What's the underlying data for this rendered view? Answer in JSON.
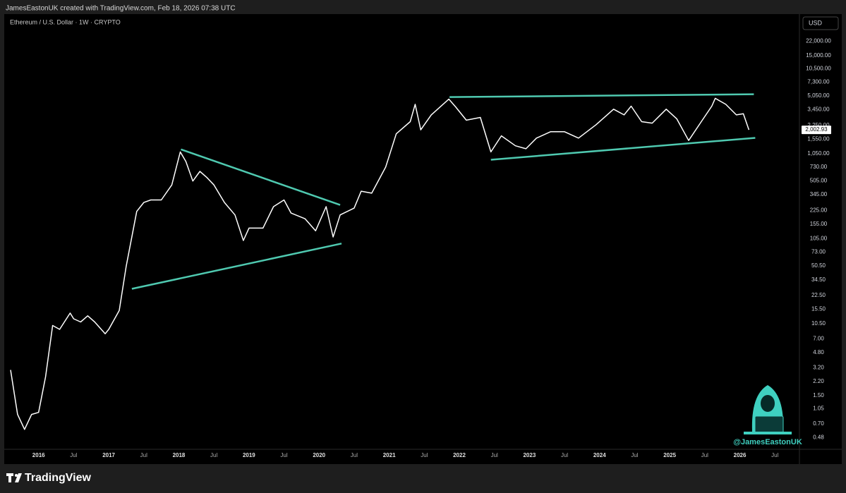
{
  "header": {
    "credit": "JamesEastonUK created with TradingView.com, Feb 18, 2026 07:38 UTC"
  },
  "footer": {
    "brand": "TradingView",
    "handle": "@JamesEastonUK"
  },
  "chart_data": {
    "type": "line",
    "title": "Ethereum / U.S. Dollar · 1W · CRYPTO",
    "currency": "USD",
    "log_scale": true,
    "color": "#ffffff",
    "x": [
      2015.6,
      2015.7,
      2015.8,
      2015.9,
      2016.0,
      2016.1,
      2016.2,
      2016.3,
      2016.45,
      2016.5,
      2016.6,
      2016.7,
      2016.8,
      2016.95,
      2017.0,
      2017.15,
      2017.25,
      2017.4,
      2017.5,
      2017.6,
      2017.75,
      2017.9,
      2018.02,
      2018.1,
      2018.2,
      2018.3,
      2018.4,
      2018.5,
      2018.65,
      2018.8,
      2018.92,
      2019.0,
      2019.2,
      2019.35,
      2019.5,
      2019.6,
      2019.8,
      2019.95,
      2020.1,
      2020.2,
      2020.3,
      2020.5,
      2020.6,
      2020.75,
      2020.95,
      2021.1,
      2021.3,
      2021.37,
      2021.45,
      2021.6,
      2021.85,
      2021.95,
      2022.1,
      2022.3,
      2022.45,
      2022.6,
      2022.8,
      2022.95,
      2023.1,
      2023.3,
      2023.5,
      2023.7,
      2023.95,
      2024.2,
      2024.35,
      2024.45,
      2024.6,
      2024.75,
      2024.95,
      2025.1,
      2025.27,
      2025.45,
      2025.6,
      2025.65,
      2025.8,
      2025.95,
      2026.05,
      2026.13
    ],
    "values": [
      3.0,
      0.9,
      0.6,
      0.9,
      0.95,
      2.5,
      10,
      9,
      14,
      12,
      11,
      13,
      11,
      8,
      9,
      15,
      50,
      220,
      280,
      300,
      300,
      450,
      1100,
      850,
      500,
      650,
      550,
      450,
      280,
      200,
      100,
      140,
      140,
      250,
      300,
      210,
      180,
      130,
      250,
      110,
      200,
      240,
      380,
      360,
      730,
      1800,
      2500,
      4000,
      2000,
      3000,
      4600,
      3700,
      2600,
      2800,
      1100,
      1700,
      1300,
      1200,
      1600,
      1900,
      1900,
      1600,
      2300,
      3500,
      3000,
      3800,
      2500,
      2400,
      3500,
      2700,
      1500,
      2500,
      3800,
      4700,
      4000,
      3000,
      3100,
      2002.93
    ],
    "last_price": {
      "value": 2002.93,
      "label": "2,002.93"
    },
    "trendlines": [
      {
        "color": "#4fc9b0",
        "x": [
          2018.03,
          2020.3
        ],
        "values": [
          1180,
          262
        ]
      },
      {
        "color": "#4fc9b0",
        "x": [
          2017.33,
          2020.32
        ],
        "values": [
          27,
          92
        ]
      },
      {
        "color": "#4fc9b0",
        "x": [
          2021.86,
          2026.2
        ],
        "values": [
          4860,
          5250
        ]
      },
      {
        "color": "#4fc9b0",
        "x": [
          2022.45,
          2026.22
        ],
        "values": [
          890,
          1610
        ]
      }
    ],
    "xlim": [
      2015.53,
      2026.85
    ],
    "xticks": [
      {
        "value": 2016,
        "label": "2016"
      },
      {
        "value": 2016.5,
        "label": "Jul"
      },
      {
        "value": 2017,
        "label": "2017"
      },
      {
        "value": 2017.5,
        "label": "Jul"
      },
      {
        "value": 2018,
        "label": "2018"
      },
      {
        "value": 2018.5,
        "label": "Jul"
      },
      {
        "value": 2019,
        "label": "2019"
      },
      {
        "value": 2019.5,
        "label": "Jul"
      },
      {
        "value": 2020,
        "label": "2020"
      },
      {
        "value": 2020.5,
        "label": "Jul"
      },
      {
        "value": 2021,
        "label": "2021"
      },
      {
        "value": 2021.5,
        "label": "Jul"
      },
      {
        "value": 2022,
        "label": "2022"
      },
      {
        "value": 2022.5,
        "label": "Jul"
      },
      {
        "value": 2023,
        "label": "2023"
      },
      {
        "value": 2023.5,
        "label": "Jul"
      },
      {
        "value": 2024,
        "label": "2024"
      },
      {
        "value": 2024.5,
        "label": "Jul"
      },
      {
        "value": 2025,
        "label": "2025"
      },
      {
        "value": 2025.5,
        "label": "Jul"
      },
      {
        "value": 2026,
        "label": "2026"
      },
      {
        "value": 2026.5,
        "label": "Jul"
      }
    ],
    "ylim": [
      0.35,
      46000
    ],
    "yticks": [
      {
        "value": 22000,
        "label": "22,000.00"
      },
      {
        "value": 15000,
        "label": "15,000.00"
      },
      {
        "value": 10500,
        "label": "10,500.00"
      },
      {
        "value": 7300,
        "label": "7,300.00"
      },
      {
        "value": 5050,
        "label": "5,050.00"
      },
      {
        "value": 3450,
        "label": "3,450.00"
      },
      {
        "value": 2250,
        "label": "2,250.00"
      },
      {
        "value": 1550,
        "label": "1,550.00"
      },
      {
        "value": 1050,
        "label": "1,050.00"
      },
      {
        "value": 730,
        "label": "730.00"
      },
      {
        "value": 505,
        "label": "505.00"
      },
      {
        "value": 345,
        "label": "345.00"
      },
      {
        "value": 225,
        "label": "225.00"
      },
      {
        "value": 155,
        "label": "155.00"
      },
      {
        "value": 105,
        "label": "105.00"
      },
      {
        "value": 73,
        "label": "73.00"
      },
      {
        "value": 50.5,
        "label": "50.50"
      },
      {
        "value": 34.5,
        "label": "34.50"
      },
      {
        "value": 22.5,
        "label": "22.50"
      },
      {
        "value": 15.5,
        "label": "15.50"
      },
      {
        "value": 10.5,
        "label": "10.50"
      },
      {
        "value": 7,
        "label": "7.00"
      },
      {
        "value": 4.8,
        "label": "4.80"
      },
      {
        "value": 3.2,
        "label": "3.20"
      },
      {
        "value": 2.2,
        "label": "2.20"
      },
      {
        "value": 1.5,
        "label": "1.50"
      },
      {
        "value": 1.05,
        "label": "1.05"
      },
      {
        "value": 0.7,
        "label": "0.70"
      },
      {
        "value": 0.48,
        "label": "0.48"
      }
    ]
  }
}
